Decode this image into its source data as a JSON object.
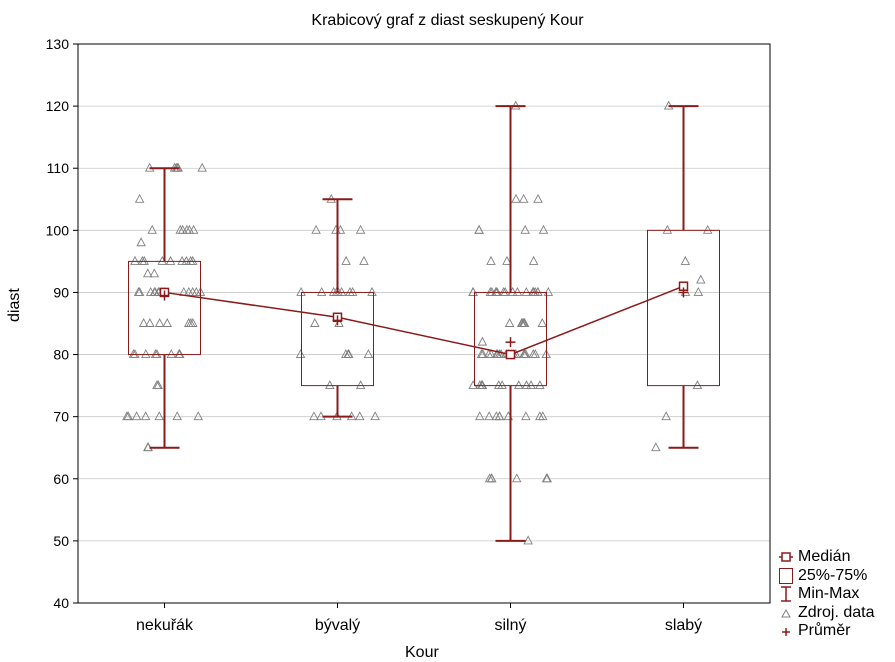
{
  "chart_data": {
    "type": "box",
    "title": "Krabicový graf z diast seskupený Kour",
    "xlabel": "Kour",
    "ylabel": "diast",
    "ylim": [
      40,
      130
    ],
    "yticks": [
      40,
      50,
      60,
      70,
      80,
      90,
      100,
      110,
      120,
      130
    ],
    "categories": [
      "nekuřák",
      "bývalý",
      "silný",
      "slabý"
    ],
    "median": [
      90,
      86,
      80,
      91
    ],
    "q1": [
      80,
      75,
      75,
      75
    ],
    "q3": [
      95,
      90,
      90,
      100
    ],
    "min": [
      65,
      70,
      50,
      65
    ],
    "max": [
      110,
      105,
      120,
      120
    ],
    "mean": [
      89.5,
      85.5,
      82,
      90
    ],
    "points": [
      [
        110,
        110,
        110,
        110,
        110,
        110,
        105,
        100,
        100,
        100,
        100,
        100,
        100,
        98,
        95,
        95,
        95,
        95,
        95,
        95,
        95,
        95,
        95,
        93,
        93,
        90,
        90,
        90,
        90,
        90,
        90,
        90,
        90,
        90,
        90,
        90,
        90,
        90,
        90,
        85,
        85,
        85,
        85,
        85,
        85,
        85,
        80,
        80,
        80,
        80,
        80,
        80,
        80,
        80,
        80,
        75,
        75,
        70,
        70,
        70,
        70,
        70,
        70,
        70,
        65,
        65
      ],
      [
        105,
        100,
        100,
        100,
        100,
        95,
        95,
        90,
        90,
        90,
        90,
        90,
        90,
        90,
        90,
        90,
        85,
        85,
        80,
        80,
        80,
        80,
        80,
        75,
        75,
        70,
        70,
        70,
        70,
        70,
        70
      ],
      [
        120,
        105,
        105,
        105,
        100,
        100,
        100,
        100,
        95,
        95,
        95,
        90,
        90,
        90,
        90,
        90,
        90,
        90,
        90,
        90,
        90,
        90,
        90,
        90,
        90,
        90,
        90,
        90,
        90,
        85,
        85,
        85,
        85,
        85,
        85,
        85,
        82,
        80,
        80,
        80,
        80,
        80,
        80,
        80,
        80,
        80,
        80,
        80,
        80,
        80,
        80,
        80,
        80,
        80,
        80,
        80,
        80,
        80,
        75,
        75,
        75,
        75,
        75,
        75,
        75,
        75,
        75,
        75,
        75,
        70,
        70,
        70,
        70,
        70,
        70,
        70,
        70,
        70,
        60,
        60,
        60,
        60,
        60,
        60,
        50
      ],
      [
        120,
        100,
        100,
        95,
        92,
        90,
        90,
        75,
        70,
        65
      ]
    ],
    "colors": {
      "box": "#8b1a1a",
      "points": "#808080",
      "grid": "#c8c8c8"
    },
    "legend": {
      "position": "bottom-right",
      "items": [
        "Medián",
        "25%-75%",
        "Min-Max",
        "Zdroj. data",
        "Průměr"
      ]
    }
  }
}
